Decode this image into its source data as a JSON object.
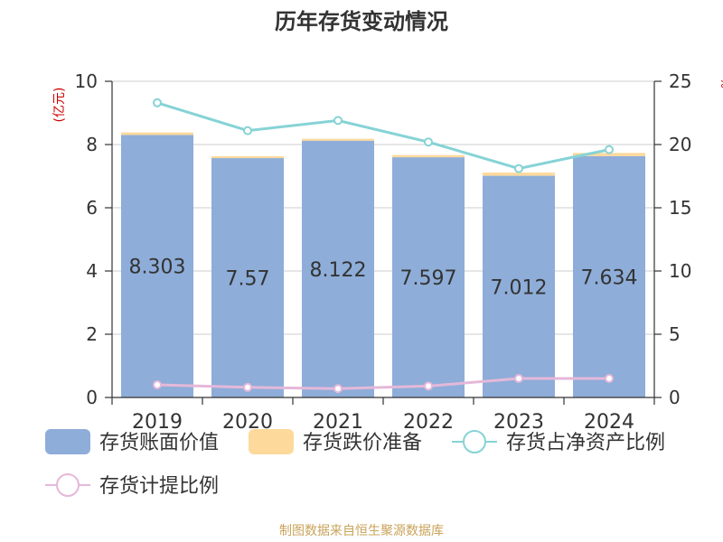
{
  "chart_data": {
    "type": "bar",
    "title": "历年存货变动情况",
    "categories": [
      "2019",
      "2020",
      "2021",
      "2022",
      "2023",
      "2024"
    ],
    "y_left": {
      "label": "(亿元)",
      "ylim": [
        0,
        10
      ],
      "ticks": [
        0,
        2,
        4,
        6,
        8,
        10
      ]
    },
    "y_right": {
      "label": "%",
      "ylim": [
        0,
        25
      ],
      "ticks": [
        0,
        5,
        10,
        15,
        20,
        25
      ]
    },
    "series": [
      {
        "name": "存货账面价值",
        "kind": "bar",
        "stack": "inventory",
        "axis": "left",
        "color": "#8eadd9",
        "values": [
          8.303,
          7.57,
          8.122,
          7.597,
          7.012,
          7.634
        ],
        "labels": [
          "8.303",
          "7.57",
          "8.122",
          "7.597",
          "7.012",
          "7.634"
        ]
      },
      {
        "name": "存货跌价准备",
        "kind": "bar",
        "stack": "inventory",
        "axis": "left",
        "color": "#fdd99b",
        "values": [
          0.08,
          0.06,
          0.06,
          0.07,
          0.1,
          0.1
        ]
      },
      {
        "name": "存货占净资产比例",
        "kind": "line",
        "axis": "right",
        "color": "#86d3d6",
        "values": [
          23.3,
          21.1,
          21.9,
          20.2,
          18.1,
          19.6
        ]
      },
      {
        "name": "存货计提比例",
        "kind": "line",
        "axis": "right",
        "color": "#e5b8d9",
        "values": [
          1.0,
          0.8,
          0.7,
          0.9,
          1.5,
          1.5
        ]
      }
    ],
    "grid": true,
    "legend_position": "bottom"
  },
  "footer": {
    "source": "制图数据来自恒生聚源数据库"
  },
  "colors": {
    "title": "#333333",
    "unit": "#cc0000",
    "source": "#c9a35a",
    "grid": "#cccccc",
    "axis": "#333333"
  }
}
